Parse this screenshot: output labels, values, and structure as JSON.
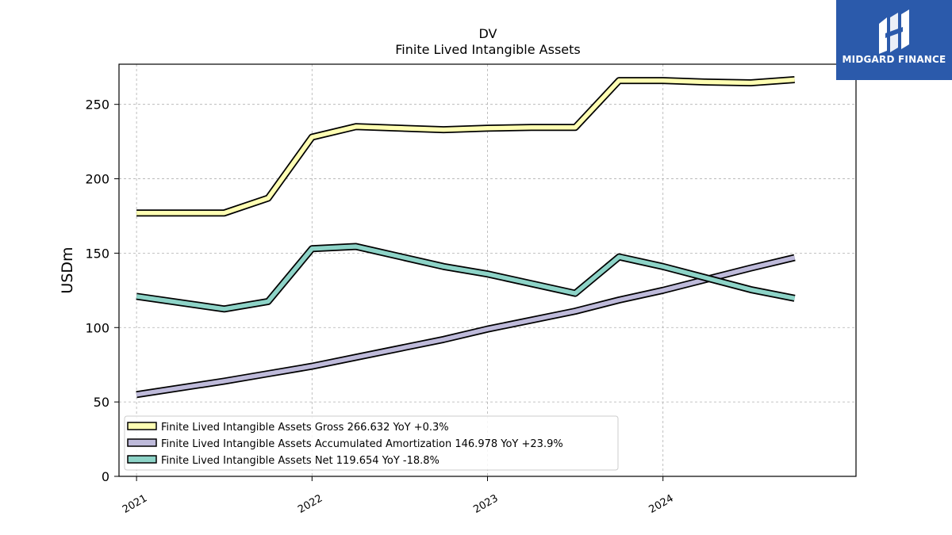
{
  "brand": {
    "name": "MIDGARD FINANCE",
    "bg_color": "#2b5aab"
  },
  "chart_data": {
    "type": "line",
    "title": "DV",
    "subtitle": "Finite Lived Intangible Assets",
    "xlabel": "",
    "ylabel": "USDm",
    "ylim": [
      0,
      277
    ],
    "yticks": [
      0,
      50,
      100,
      150,
      200,
      250
    ],
    "xlim": [
      2020.9,
      2025.1
    ],
    "xticks": [
      {
        "value": 2021,
        "label": "2021"
      },
      {
        "value": 2022,
        "label": "2022"
      },
      {
        "value": 2023,
        "label": "2023"
      },
      {
        "value": 2024,
        "label": "2024"
      }
    ],
    "grid": true,
    "legend_position": "lower-left",
    "series": [
      {
        "name": "Finite Lived Intangible Assets Gross",
        "legend_label": "Finite Lived Intangible Assets Gross  266.632 YoY +0.3%",
        "color": "#ffffb3",
        "x": [
          2021.0,
          2021.5,
          2021.75,
          2022.0,
          2022.25,
          2022.75,
          2023.0,
          2023.25,
          2023.5,
          2023.75,
          2024.0,
          2024.25,
          2024.5,
          2024.75
        ],
        "y": [
          177,
          177,
          187,
          228,
          235,
          233,
          234,
          234.5,
          234.5,
          266,
          266,
          265,
          264.5,
          266.6
        ]
      },
      {
        "name": "Finite Lived Intangible Assets Accumulated Amortization",
        "legend_label": "Finite Lived Intangible Assets Accumulated Amortization  146.978 YoY +23.9%",
        "color": "#bebada",
        "x": [
          2021.0,
          2021.5,
          2021.75,
          2022.0,
          2022.25,
          2022.75,
          2023.0,
          2023.5,
          2023.75,
          2024.0,
          2024.5,
          2024.75
        ],
        "y": [
          55,
          64,
          69,
          74,
          80,
          92,
          99,
          111,
          118.5,
          125,
          140,
          147
        ]
      },
      {
        "name": "Finite Lived Intangible Assets Net",
        "legend_label": "Finite Lived Intangible Assets Net  119.654 YoY -18.8%",
        "color": "#8dd3c7",
        "x": [
          2021.0,
          2021.5,
          2021.75,
          2022.0,
          2022.25,
          2022.75,
          2023.0,
          2023.5,
          2023.75,
          2024.0,
          2024.5,
          2024.75
        ],
        "y": [
          121,
          112.5,
          117.5,
          153,
          154.5,
          141,
          136,
          123,
          147.5,
          141,
          125.5,
          119.7
        ]
      }
    ]
  }
}
